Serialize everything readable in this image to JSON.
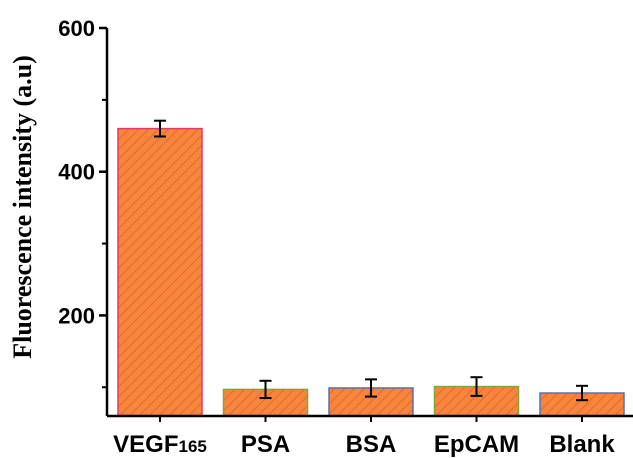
{
  "chart_data": {
    "type": "bar",
    "title": "",
    "xlabel": "",
    "ylabel": "Fluorescence intensity (a.u)",
    "ylim": [
      60,
      600
    ],
    "yticks": [
      200,
      400,
      600
    ],
    "grid": false,
    "categories": [
      {
        "main": "VEGF",
        "sub": "165"
      },
      {
        "main": "PSA",
        "sub": ""
      },
      {
        "main": "BSA",
        "sub": ""
      },
      {
        "main": "EpCAM",
        "sub": ""
      },
      {
        "main": "Blank",
        "sub": ""
      }
    ],
    "values": [
      460,
      97,
      99,
      101,
      92
    ],
    "errors": [
      11,
      12,
      12,
      13,
      10
    ],
    "colors": {
      "bar_fill": "#f7853c",
      "hatch": "#d9642a",
      "edge_first": "#e03c6a",
      "edge_others": [
        "#7fa836",
        "#5a6fa8",
        "#7fa836",
        "#4a74c4"
      ]
    }
  }
}
